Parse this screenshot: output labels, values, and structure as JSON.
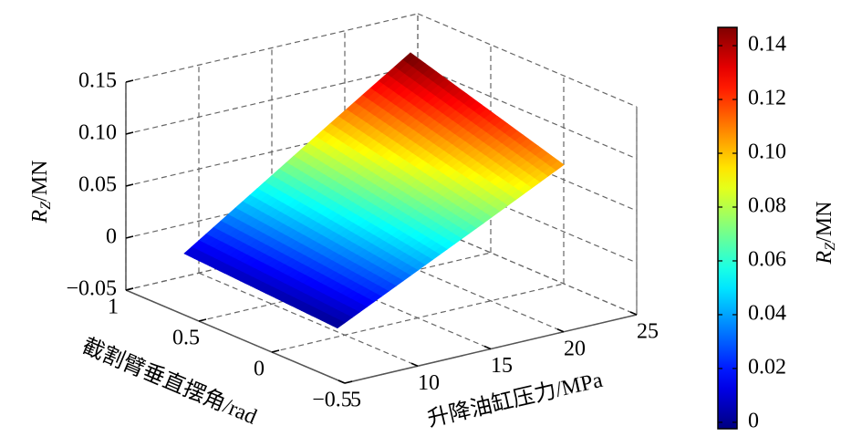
{
  "chart_data": {
    "type": "surface",
    "xlabel": "升降油缸压力/MPa",
    "ylabel": "截割臂垂直摆角/rad",
    "zlabel": {
      "symbol": "R",
      "subscript": "Z",
      "unit": "/MN"
    },
    "x": [
      5,
      10,
      15,
      20.5
    ],
    "y": [
      -0.45,
      -0.1,
      0.25,
      0.6
    ],
    "z": [
      [
        0.0,
        0.034,
        0.068,
        0.106
      ],
      [
        0.003,
        0.041,
        0.079,
        0.121
      ],
      [
        0.006,
        0.048,
        0.09,
        0.136
      ],
      [
        0.009,
        0.055,
        0.101,
        0.151
      ]
    ],
    "xlim": [
      5,
      25
    ],
    "xticks": [
      5,
      10,
      15,
      20,
      25
    ],
    "ylim": [
      -0.5,
      1
    ],
    "yticks": [
      {
        "value": -0.5,
        "label": "−0.5"
      },
      0,
      0.5,
      1
    ],
    "zlim": [
      -0.05,
      0.15
    ],
    "zticks": [
      {
        "value": -0.05,
        "label": "−0.05"
      },
      0,
      0.05,
      {
        "value": 0.1,
        "label": "0.10"
      },
      0.15
    ],
    "grid": true,
    "colormap": "jet",
    "colorbar": {
      "clim": [
        -0.0024,
        0.1468
      ],
      "ticks": [
        0,
        0.02,
        0.04,
        0.06,
        0.08,
        {
          "value": 0.1,
          "label": "0.10"
        },
        0.12,
        0.14
      ],
      "label": {
        "symbol": "R",
        "subscript": "Z",
        "unit": "/MN"
      }
    }
  }
}
